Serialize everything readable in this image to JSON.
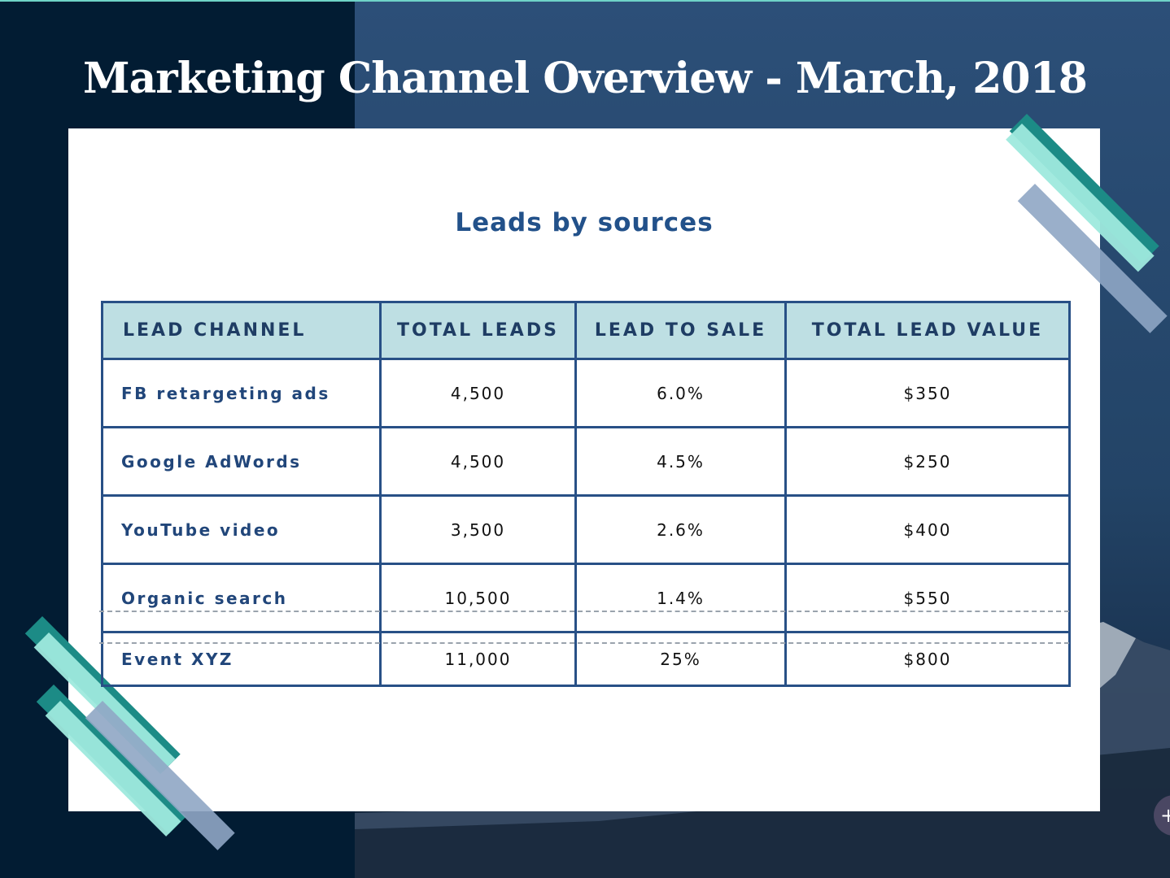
{
  "slide": {
    "title": "Marketing Channel Overview - March, 2018",
    "subtitle": "Leads by sources"
  },
  "table": {
    "headers": [
      "LEAD CHANNEL",
      "TOTAL LEADS",
      "LEAD TO SALE",
      "TOTAL LEAD VALUE"
    ],
    "rows": [
      {
        "channel": "FB retargeting ads",
        "total_leads": "4,500",
        "lead_to_sale": "6.0%",
        "lead_value": "$350"
      },
      {
        "channel": "Google AdWords",
        "total_leads": "4,500",
        "lead_to_sale": "4.5%",
        "lead_value": "$250"
      },
      {
        "channel": "YouTube video",
        "total_leads": "3,500",
        "lead_to_sale": "2.6%",
        "lead_value": "$400"
      },
      {
        "channel": "Organic search",
        "total_leads": "10,500",
        "lead_to_sale": "1.4%",
        "lead_value": "$550"
      },
      {
        "channel": "Event XYZ",
        "total_leads": "11,000",
        "lead_to_sale": "25%",
        "lead_value": "$800"
      }
    ]
  },
  "colors": {
    "background_dark": "#021c33",
    "background_blue": "#2c4f78",
    "header_fill": "#bedfe3",
    "table_border": "#285086",
    "accent_teal": "#1c8b86",
    "accent_mint": "#9ee9dd",
    "accent_slate": "#8fa6c4",
    "title_text": "#22518a"
  },
  "fab": {
    "icon": "plus-icon",
    "symbol": "+"
  }
}
